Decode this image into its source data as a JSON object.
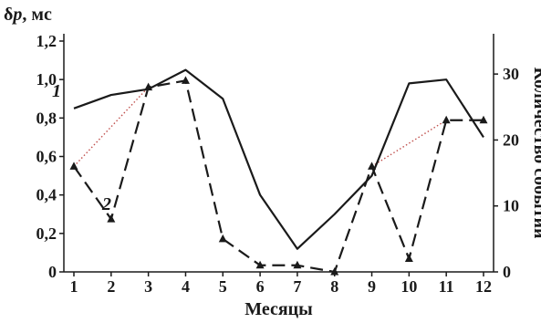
{
  "chart_data": {
    "type": "line",
    "xlabel": "Месяцы",
    "ylabel_prefix": "δ",
    "ylabel_var": "p",
    "ylabel_suffix": ", мс",
    "ylabel_right": "Количество событий",
    "x": [
      1,
      2,
      3,
      4,
      5,
      6,
      7,
      8,
      9,
      10,
      11,
      12
    ],
    "x_tick_labels": [
      "1",
      "2",
      "3",
      "4",
      "5",
      "6",
      "7",
      "8",
      "9",
      "10",
      "11",
      "12"
    ],
    "ylim": [
      0,
      1.2
    ],
    "y_ticks": [
      0,
      0.2,
      0.4,
      0.6,
      0.8,
      1.0,
      1.2
    ],
    "y_tick_labels": [
      "0",
      "0,2",
      "0,4",
      "0,6",
      "0,8",
      "1,0",
      "1,2"
    ],
    "ylim_right": [
      0,
      35
    ],
    "y_ticks_right": [
      0,
      10,
      20,
      30
    ],
    "y_tick_labels_right": [
      "0",
      "10",
      "20",
      "30"
    ],
    "grid": false,
    "series": [
      {
        "label": "1",
        "axis": "left",
        "style": "solid",
        "color": "#1a1a1a",
        "values": [
          0.85,
          0.92,
          0.95,
          1.05,
          0.9,
          0.4,
          0.12,
          0.3,
          0.5,
          0.98,
          1.0,
          0.7
        ]
      },
      {
        "label": "2",
        "axis": "right",
        "style": "dashed",
        "marker": "triangle",
        "color": "#1a1a1a",
        "values": [
          16,
          8,
          28,
          29,
          5,
          1,
          1,
          0,
          16,
          2,
          23,
          23
        ]
      }
    ],
    "trend_segments": {
      "axis": "right",
      "color": "#c0504d",
      "style": "dotted",
      "segments": [
        {
          "from": [
            1,
            16
          ],
          "to": [
            3,
            28
          ]
        },
        {
          "from": [
            9,
            16
          ],
          "to": [
            11,
            23
          ]
        }
      ]
    }
  }
}
